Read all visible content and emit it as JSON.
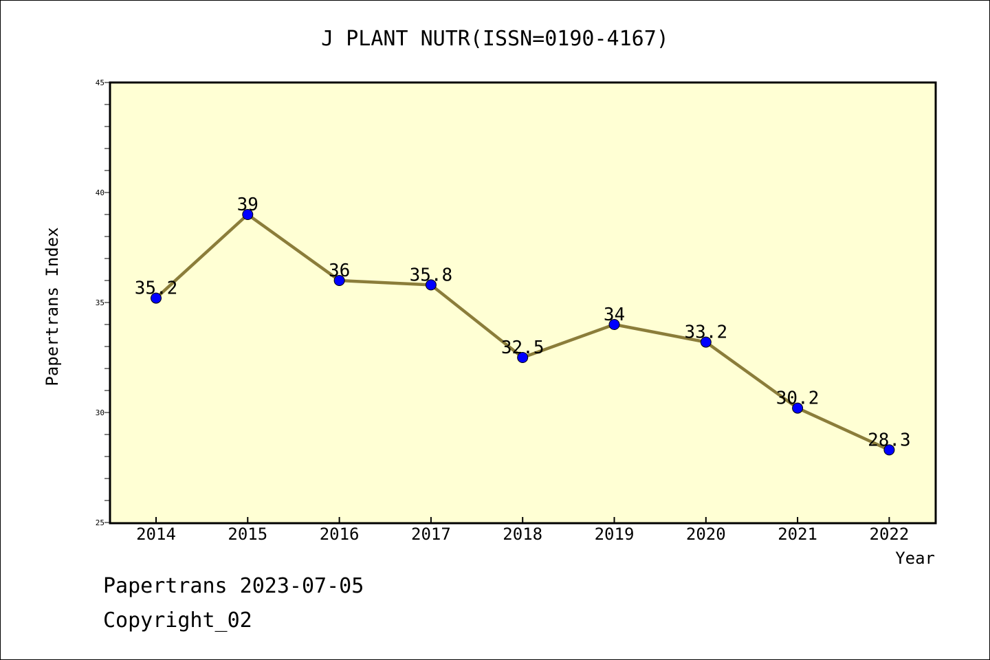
{
  "chart_data": {
    "type": "line",
    "title": "J PLANT NUTR(ISSN=0190-4167)",
    "xlabel": "Year",
    "ylabel": "Papertrans Index",
    "categories": [
      "2014",
      "2015",
      "2016",
      "2017",
      "2018",
      "2019",
      "2020",
      "2021",
      "2022"
    ],
    "series": [
      {
        "values": [
          35.2,
          39,
          36,
          35.8,
          32.5,
          34,
          33.2,
          30.2,
          28.3
        ],
        "labels": [
          "35.2",
          "39",
          "36",
          "35.8",
          "32.5",
          "34",
          "33.2",
          "30.2",
          "28.3"
        ],
        "line_color": "#8b7d3a",
        "marker_color": "#0000ff"
      }
    ],
    "ylim": [
      25,
      45
    ],
    "yticks": [
      "25",
      "30",
      "35",
      "40",
      "45"
    ],
    "plot_background": "#ffffd4",
    "grid": false,
    "legend": "none"
  },
  "footer": {
    "line1": "Papertrans 2023-07-05",
    "line2": "Copyright_02"
  }
}
